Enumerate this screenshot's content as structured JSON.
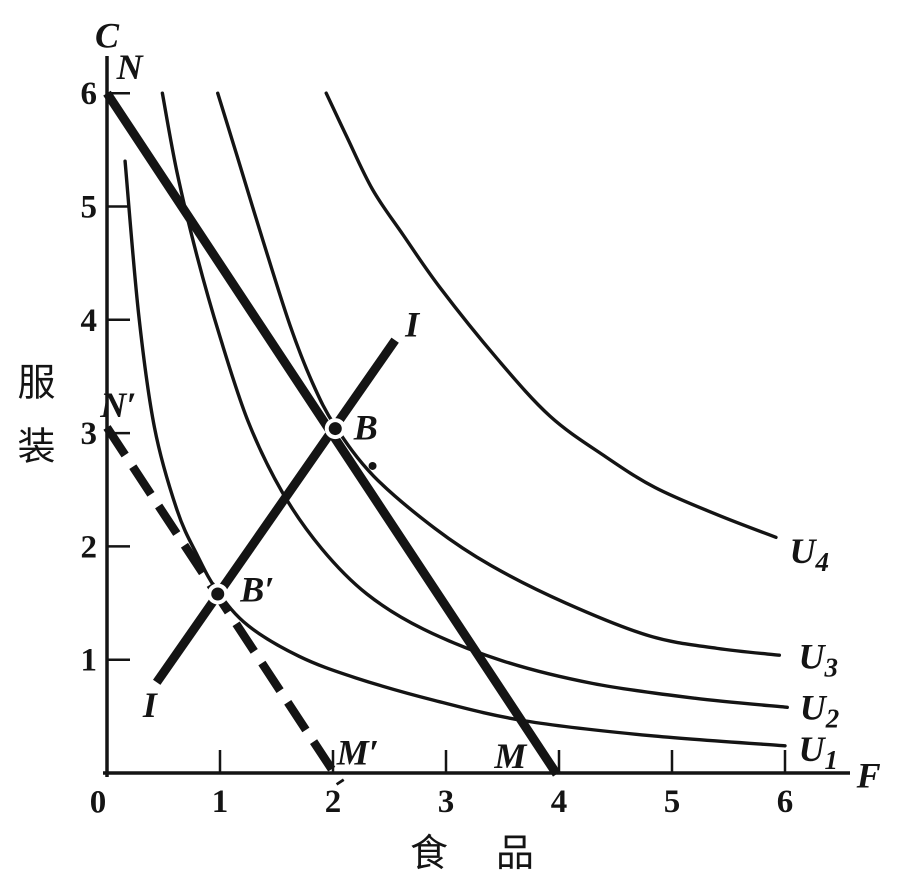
{
  "figure": {
    "background": "#ffffff",
    "ink": "#141414"
  },
  "chart_data": {
    "type": "line",
    "title": "",
    "xlabel": "食 品",
    "ylabel": "服装",
    "x_axis_letter": "F",
    "y_axis_letter": "C",
    "origin_label": "0",
    "xlim": [
      0,
      6.6
    ],
    "ylim": [
      0,
      6.35
    ],
    "grid": false,
    "x_ticks": [
      1,
      2,
      3,
      4,
      5,
      6
    ],
    "y_ticks": [
      1,
      2,
      3,
      4,
      5,
      6
    ],
    "series": [
      {
        "name": "U1",
        "label": "U",
        "label_sub": "1",
        "label_at": [
          6.12,
          0.21
        ],
        "points": [
          [
            0.16,
            5.4
          ],
          [
            0.28,
            4.05
          ],
          [
            0.42,
            3.05
          ],
          [
            0.62,
            2.32
          ],
          [
            0.8,
            1.92
          ],
          [
            0.98,
            1.6
          ],
          [
            1.25,
            1.3
          ],
          [
            1.7,
            1.03
          ],
          [
            2.2,
            0.84
          ],
          [
            2.9,
            0.64
          ],
          [
            3.7,
            0.46
          ],
          [
            4.8,
            0.33
          ],
          [
            6.0,
            0.24
          ]
        ]
      },
      {
        "name": "U2",
        "label": "U",
        "label_sub": "2",
        "label_at": [
          6.13,
          0.58
        ],
        "points": [
          [
            0.49,
            6.0
          ],
          [
            0.62,
            5.3
          ],
          [
            0.8,
            4.55
          ],
          [
            1.0,
            3.85
          ],
          [
            1.25,
            3.1
          ],
          [
            1.55,
            2.48
          ],
          [
            1.9,
            1.98
          ],
          [
            2.3,
            1.58
          ],
          [
            2.8,
            1.27
          ],
          [
            3.5,
            0.99
          ],
          [
            4.3,
            0.79
          ],
          [
            5.2,
            0.66
          ],
          [
            6.02,
            0.58
          ]
        ]
      },
      {
        "name": "U3",
        "label": "U",
        "label_sub": "3",
        "label_at": [
          6.12,
          1.03
        ],
        "points": [
          [
            0.98,
            6.0
          ],
          [
            1.15,
            5.45
          ],
          [
            1.38,
            4.7
          ],
          [
            1.62,
            3.95
          ],
          [
            1.82,
            3.44
          ],
          [
            2.02,
            3.06
          ],
          [
            2.36,
            2.62
          ],
          [
            2.9,
            2.16
          ],
          [
            3.4,
            1.83
          ],
          [
            4.06,
            1.5
          ],
          [
            4.8,
            1.21
          ],
          [
            5.4,
            1.1
          ],
          [
            5.95,
            1.04
          ]
        ]
      },
      {
        "name": "U4",
        "label": "U",
        "label_sub": "4",
        "label_at": [
          6.04,
          1.96
        ],
        "points": [
          [
            1.94,
            6.0
          ],
          [
            2.12,
            5.62
          ],
          [
            2.35,
            5.15
          ],
          [
            2.62,
            4.75
          ],
          [
            2.95,
            4.28
          ],
          [
            3.45,
            3.66
          ],
          [
            3.92,
            3.15
          ],
          [
            4.4,
            2.8
          ],
          [
            4.85,
            2.52
          ],
          [
            5.4,
            2.28
          ],
          [
            5.92,
            2.08
          ]
        ]
      }
    ],
    "budget_lines": [
      {
        "name": "NM",
        "style": "solid",
        "width": 9,
        "from": [
          0,
          6.0
        ],
        "to": [
          3.98,
          -0.01
        ],
        "labels": [
          {
            "text": "N",
            "at": [
              0.2,
              6.23
            ]
          },
          {
            "text": "M",
            "at": [
              3.57,
              0.15
            ]
          }
        ]
      },
      {
        "name": "N'M'",
        "style": "dashed",
        "width": 8.5,
        "from": [
          0,
          3.05
        ],
        "to": [
          2.07,
          -0.09
        ],
        "labels": [
          {
            "text": "N′",
            "at": [
              0.1,
              3.25
            ]
          },
          {
            "text": "M′",
            "at": [
              2.22,
              0.18
            ]
          }
        ]
      }
    ],
    "income_consumption_line": {
      "name": "I-I",
      "width": 9,
      "from": [
        0.44,
        0.8
      ],
      "to": [
        2.55,
        3.82
      ],
      "labels": [
        {
          "text": "I",
          "at": [
            0.38,
            0.6
          ]
        },
        {
          "text": "I",
          "at": [
            2.7,
            3.96
          ]
        }
      ]
    },
    "points": [
      {
        "name": "B",
        "at": [
          2.02,
          3.04
        ],
        "label": "B",
        "label_at": [
          2.29,
          3.05
        ]
      },
      {
        "name": "B'",
        "at": [
          0.98,
          1.58
        ],
        "label": "B′",
        "label_at": [
          1.33,
          1.62
        ]
      }
    ],
    "ink_speck": {
      "at": [
        2.35,
        2.71
      ]
    }
  }
}
